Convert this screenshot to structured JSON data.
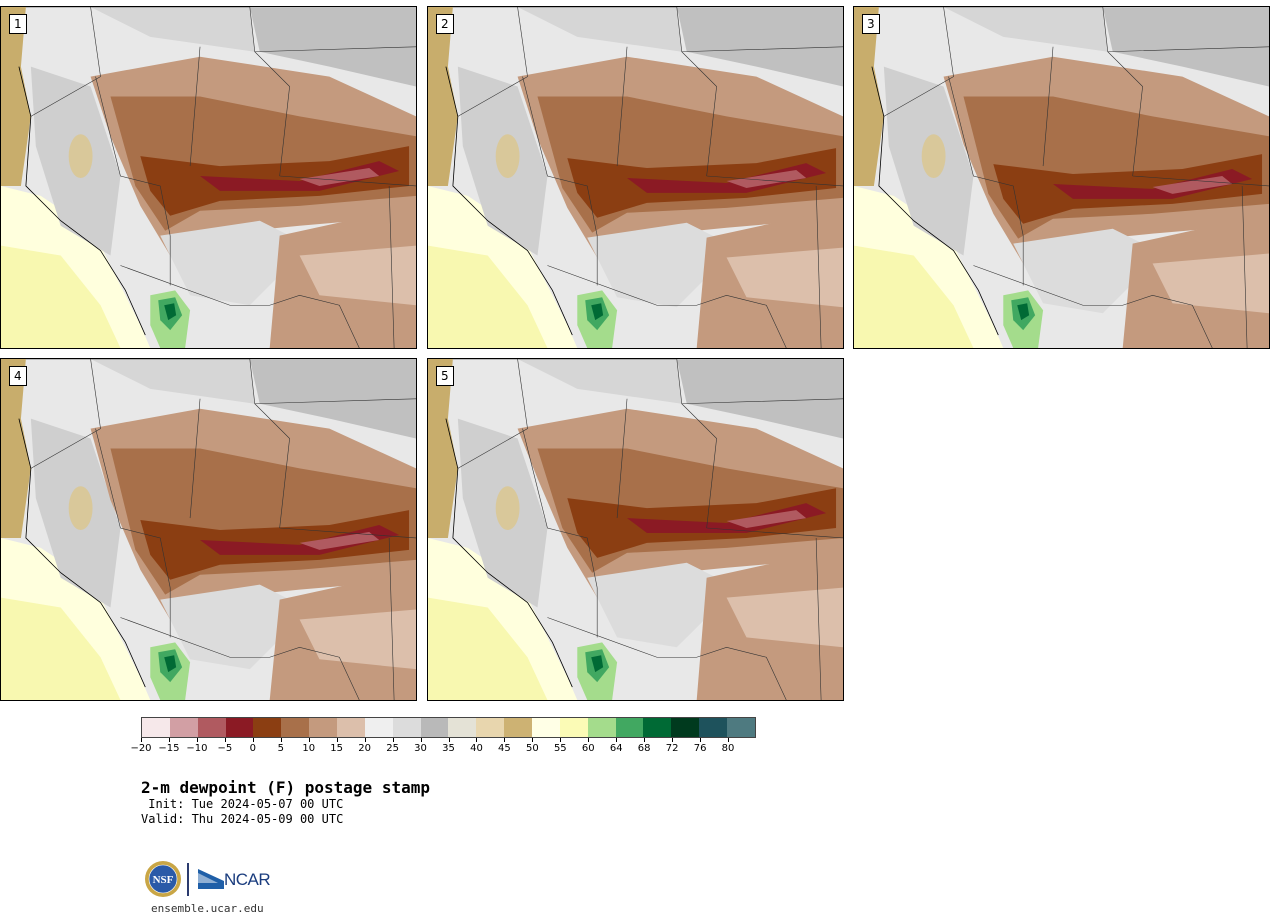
{
  "panels": [
    {
      "label": "1"
    },
    {
      "label": "2"
    },
    {
      "label": "3"
    },
    {
      "label": "4"
    },
    {
      "label": "5"
    }
  ],
  "colorbar": {
    "colors": [
      "#f6e8ea",
      "#d29fa4",
      "#b05a60",
      "#8b1a24",
      "#8b3e12",
      "#a8704a",
      "#c49a7e",
      "#dcbfab",
      "#efefef",
      "#dcdcdc",
      "#b9b9b9",
      "#e4e2d6",
      "#e8d6ae",
      "#cdb273",
      "#ffffe6",
      "#fbfbb6",
      "#a4dc8c",
      "#41a861",
      "#006a35",
      "#003a1e",
      "#1e525c",
      "#4e7a80"
    ],
    "tick_labels": [
      "−20",
      "−15",
      "−10",
      "−5",
      "0",
      "5",
      "10",
      "15",
      "20",
      "25",
      "30",
      "35",
      "40",
      "45",
      "50",
      "55",
      "60",
      "64",
      "68",
      "72",
      "76",
      "80"
    ]
  },
  "title": "2-m dewpoint (F) postage stamp",
  "init": " Init: Tue 2024-05-07 00 UTC",
  "valid": "Valid: Thu 2024-05-09 00 UTC",
  "logos": {
    "nsf": "NSF",
    "ncar": "NCAR"
  },
  "url": "ensemble.ucar.edu"
}
